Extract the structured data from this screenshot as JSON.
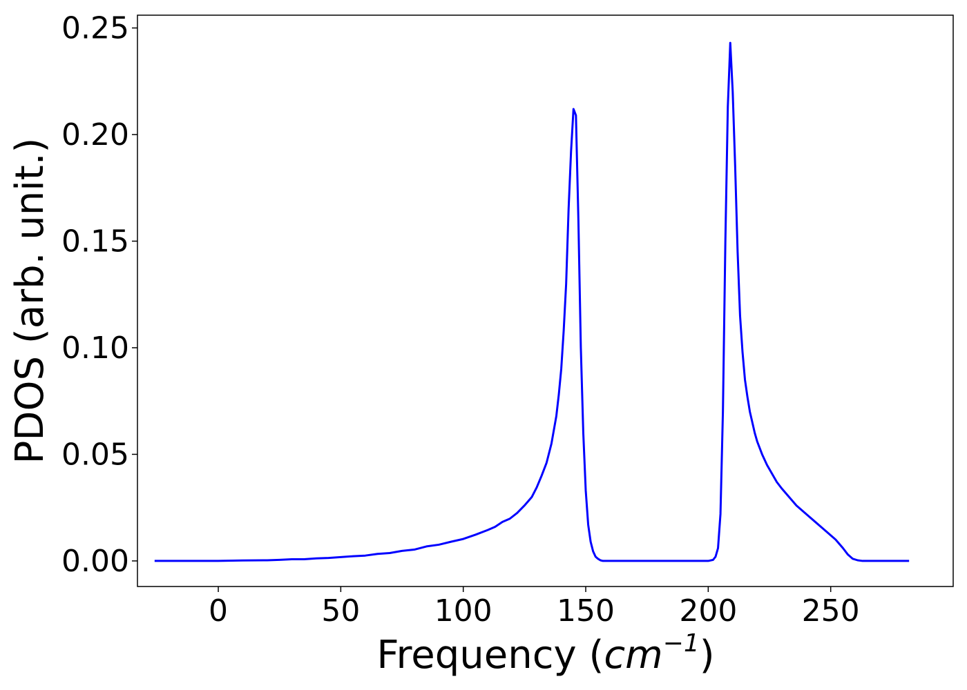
{
  "chart_data": {
    "type": "line",
    "xlabel_prefix": "Frequency (",
    "xlabel_math": "cm",
    "xlabel_exponent": "−1",
    "xlabel_suffix": ")",
    "ylabel": "PDOS (arb. unit.)",
    "xlim": [
      -33,
      300
    ],
    "ylim": [
      -0.012,
      0.256
    ],
    "xticks": [
      0,
      50,
      100,
      150,
      200,
      250
    ],
    "xtick_labels": [
      "0",
      "50",
      "100",
      "150",
      "200",
      "250"
    ],
    "yticks": [
      0.0,
      0.05,
      0.1,
      0.15,
      0.2,
      0.25
    ],
    "ytick_labels": [
      "0.00",
      "0.05",
      "0.10",
      "0.15",
      "0.20",
      "0.25"
    ],
    "grid": false,
    "series": [
      {
        "color": "#0000ff",
        "x": [
          -26,
          -10,
          0,
          10,
          20,
          25,
          30,
          35,
          40,
          45,
          50,
          55,
          60,
          65,
          70,
          75,
          80,
          85,
          90,
          95,
          100,
          105,
          110,
          113,
          116,
          119,
          122,
          125,
          128,
          130,
          132,
          134,
          136,
          138,
          139,
          140,
          141,
          142,
          143,
          144,
          145,
          146,
          147,
          148,
          149,
          150,
          151,
          152,
          153,
          154,
          155,
          156,
          157,
          160,
          170,
          180,
          190,
          200,
          202,
          203,
          204,
          205,
          206,
          207,
          208,
          209,
          210,
          211,
          212,
          213,
          214,
          215,
          216,
          217,
          218,
          219,
          220,
          222,
          224,
          226,
          228,
          230,
          233,
          236,
          240,
          244,
          248,
          252,
          255,
          257,
          259,
          261,
          263,
          265,
          270,
          282
        ],
        "y": [
          0.0,
          0.0,
          0.0,
          0.0002,
          0.0003,
          0.0005,
          0.0008,
          0.0008,
          0.0012,
          0.0014,
          0.0018,
          0.0022,
          0.0025,
          0.0033,
          0.0037,
          0.0047,
          0.0053,
          0.0068,
          0.0076,
          0.009,
          0.0103,
          0.0123,
          0.0145,
          0.016,
          0.0183,
          0.0198,
          0.0225,
          0.026,
          0.03,
          0.0345,
          0.04,
          0.046,
          0.055,
          0.068,
          0.078,
          0.09,
          0.108,
          0.13,
          0.165,
          0.192,
          0.212,
          0.209,
          0.16,
          0.1,
          0.06,
          0.033,
          0.017,
          0.009,
          0.0045,
          0.002,
          0.001,
          0.0003,
          0.0,
          0.0,
          0.0,
          0.0,
          0.0,
          0.0,
          0.0005,
          0.002,
          0.006,
          0.022,
          0.07,
          0.15,
          0.213,
          0.243,
          0.22,
          0.185,
          0.145,
          0.115,
          0.098,
          0.085,
          0.077,
          0.07,
          0.065,
          0.06,
          0.056,
          0.05,
          0.045,
          0.041,
          0.037,
          0.034,
          0.03,
          0.026,
          0.022,
          0.018,
          0.014,
          0.01,
          0.006,
          0.003,
          0.001,
          0.0003,
          0.0,
          0.0,
          0.0,
          0.0
        ]
      }
    ]
  }
}
